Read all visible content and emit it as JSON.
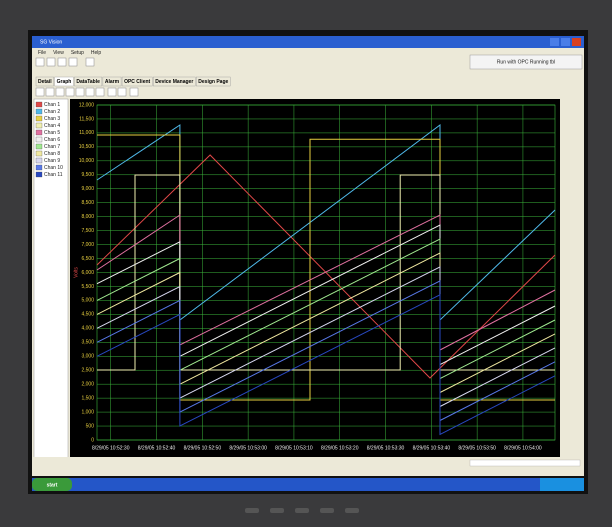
{
  "window": {
    "title": "SG Vision",
    "menu": [
      "File",
      "View",
      "Setup",
      "Help"
    ],
    "status": "Run with OPC Running tbl",
    "tabs": [
      "Detail",
      "Graph",
      "DataTable",
      "Alarm",
      "OPC Client",
      "Device Manager",
      "Design Page"
    ]
  },
  "taskbar": {
    "start": "start"
  },
  "chart_data": {
    "type": "line",
    "ylabel": "Volts",
    "xlim": [
      0,
      100
    ],
    "ylim": [
      0,
      12000
    ],
    "grid": true,
    "xticks": [
      {
        "value": 3,
        "label": "8/29/05 10:52:30"
      },
      {
        "value": 13,
        "label": "8/29/05 10:52:40"
      },
      {
        "value": 23,
        "label": "8/29/05 10:52:50"
      },
      {
        "value": 33,
        "label": "8/29/05 10:53:00"
      },
      {
        "value": 43,
        "label": "8/29/05 10:53:10"
      },
      {
        "value": 53,
        "label": "8/29/05 10:53:20"
      },
      {
        "value": 63,
        "label": "8/29/05 10:53:30"
      },
      {
        "value": 73,
        "label": "8/29/05 10:53:40"
      },
      {
        "value": 83,
        "label": "8/29/05 10:53:50"
      },
      {
        "value": 93,
        "label": "8/29/05 10:54:00"
      }
    ],
    "yticks": [
      0,
      500,
      {
        "value": 1000,
        "label": "1,000"
      },
      {
        "value": 1500,
        "label": "1,500"
      },
      {
        "value": 2000,
        "label": "2,000"
      },
      {
        "value": 2500,
        "label": "2,500"
      },
      {
        "value": 3000,
        "label": "3,000"
      },
      {
        "value": 3500,
        "label": "3,500"
      },
      {
        "value": 4000,
        "label": "4,000"
      },
      {
        "value": 4500,
        "label": "4,500"
      },
      {
        "value": 5000,
        "label": "5,000"
      },
      {
        "value": 5500,
        "label": "5,500"
      },
      {
        "value": 6000,
        "label": "6,000"
      },
      {
        "value": 6500,
        "label": "6,500"
      },
      {
        "value": 7000,
        "label": "7,000"
      },
      {
        "value": 7500,
        "label": "7,500"
      },
      {
        "value": 8000,
        "label": "8,000"
      },
      {
        "value": 8500,
        "label": "8,500"
      },
      {
        "value": 9000,
        "label": "9,000"
      },
      {
        "value": 9500,
        "label": "9,500"
      },
      {
        "value": 10000,
        "label": "10,000"
      },
      {
        "value": 10500,
        "label": "10,500"
      },
      {
        "value": 11000,
        "label": "11,000"
      },
      {
        "value": 11500,
        "label": "11,500"
      },
      {
        "value": 12000,
        "label": "12,000"
      }
    ],
    "series": [
      {
        "name": "Chan 1",
        "color": "#e04848",
        "x": [
          0,
          24.7,
          72.7,
          100
        ],
        "values": [
          6269,
          10209,
          2221,
          6627
        ]
      },
      {
        "name": "Chan 2",
        "color": "#4fb8e8",
        "x": [
          0,
          18.1,
          18.1,
          74.9,
          74.9,
          100
        ],
        "values": [
          9313,
          11284,
          4299,
          11284,
          4299,
          8239
        ]
      },
      {
        "name": "Chan 3",
        "color": "#e8d040",
        "x": [
          0,
          18.1,
          18.1,
          46.5,
          46.5,
          74.9,
          74.9,
          100
        ],
        "values": [
          10925,
          10925,
          1433,
          1433,
          10775,
          10775,
          1433,
          1433
        ]
      },
      {
        "name": "Chan 4",
        "color": "#f0f0b0",
        "x": [
          0,
          8.3,
          8.3,
          18.1,
          18.1,
          66.2,
          66.2,
          74.9,
          74.9,
          100
        ],
        "values": [
          2507,
          2507,
          9493,
          9493,
          2507,
          2507,
          9493,
          9493,
          2507,
          2507
        ]
      },
      {
        "name": "Chan 5",
        "color": "#e070a0",
        "x": [
          0,
          18.1,
          18.1,
          74.9,
          74.9,
          100
        ],
        "values": [
          6090,
          8060,
          3403,
          8060,
          3224,
          5373
        ]
      },
      {
        "name": "Chan 6",
        "color": "#f0f0f0",
        "x": [
          0,
          18.1,
          18.1,
          74.9,
          74.9,
          100
        ],
        "values": [
          5600,
          7100,
          3000,
          7700,
          2700,
          4800
        ]
      },
      {
        "name": "Chan 7",
        "color": "#a0e890",
        "x": [
          0,
          18.1,
          18.1,
          74.9,
          74.9,
          100
        ],
        "values": [
          5000,
          6500,
          2500,
          7200,
          2200,
          4300
        ]
      },
      {
        "name": "Chan 8",
        "color": "#f0e8a0",
        "x": [
          0,
          18.1,
          18.1,
          74.9,
          74.9,
          100
        ],
        "values": [
          4500,
          6000,
          2000,
          6700,
          1700,
          3800
        ]
      },
      {
        "name": "Chan 9",
        "color": "#d8d8f0",
        "x": [
          0,
          18.1,
          18.1,
          74.9,
          74.9,
          100
        ],
        "values": [
          4000,
          5500,
          1500,
          6200,
          1200,
          3300
        ]
      },
      {
        "name": "Chan 10",
        "color": "#5878e8",
        "x": [
          0,
          18.1,
          18.1,
          74.9,
          74.9,
          100
        ],
        "values": [
          3500,
          5000,
          1000,
          5700,
          700,
          2800
        ]
      },
      {
        "name": "Chan 11",
        "color": "#2848c0",
        "x": [
          0,
          18.1,
          18.1,
          74.9,
          74.9,
          100
        ],
        "values": [
          3000,
          4500,
          500,
          5200,
          200,
          2300
        ]
      }
    ]
  }
}
